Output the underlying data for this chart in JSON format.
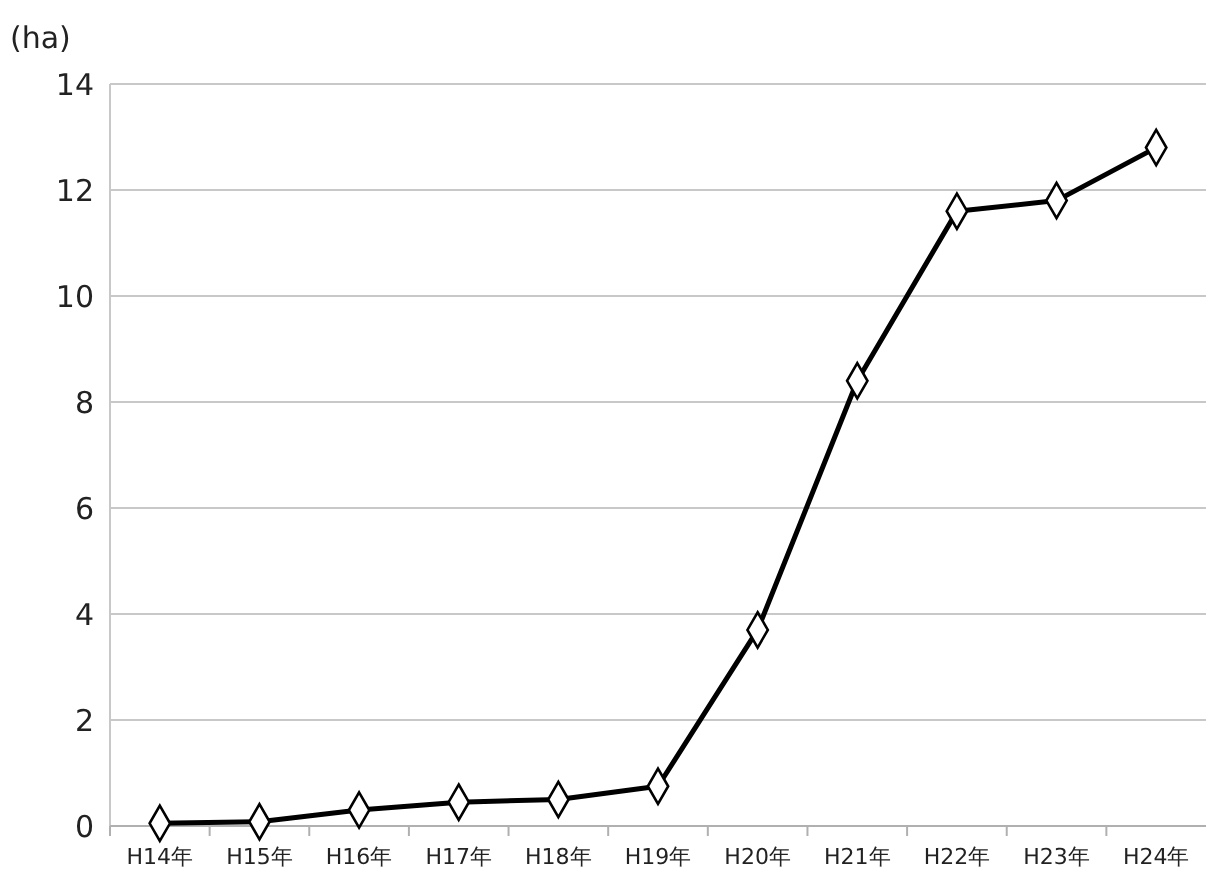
{
  "chart_data": {
    "type": "line",
    "ylabel": "(ha)",
    "categories": [
      "H14年",
      "H15年",
      "H16年",
      "H17年",
      "H18年",
      "H19年",
      "H20年",
      "H21年",
      "H22年",
      "H23年",
      "H24年"
    ],
    "series": [
      {
        "color": "#000000",
        "values": [
          0.05,
          0.08,
          0.3,
          0.45,
          0.5,
          0.75,
          3.7,
          8.4,
          11.6,
          11.8,
          12.8
        ]
      }
    ],
    "ylim": [
      0,
      14
    ],
    "yticks": [
      0,
      2,
      4,
      6,
      8,
      10,
      12,
      14
    ],
    "grid": "y",
    "marker": "diamond",
    "line_style": "solid"
  }
}
